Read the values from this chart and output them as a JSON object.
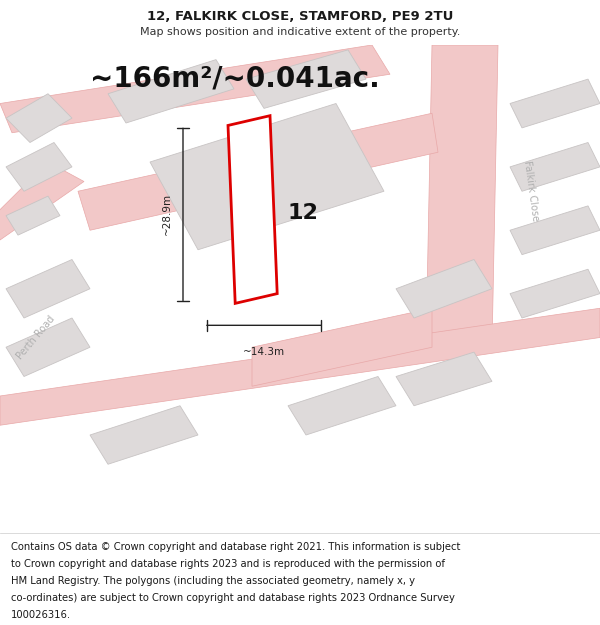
{
  "title_line1": "12, FALKIRK CLOSE, STAMFORD, PE9 2TU",
  "title_line2": "Map shows position and indicative extent of the property.",
  "area_text": "~166m²/~0.041ac.",
  "width_label": "~14.3m",
  "height_label": "~28.9m",
  "plot_number": "12",
  "footer_lines": [
    "Contains OS data © Crown copyright and database right 2021. This information is subject",
    "to Crown copyright and database rights 2023 and is reproduced with the permission of",
    "HM Land Registry. The polygons (including the associated geometry, namely x, y",
    "co-ordinates) are subject to Crown copyright and database rights 2023 Ordnance Survey",
    "100026316."
  ],
  "bg_color": "#ffffff",
  "map_bg": "#f7f2f2",
  "road_color": "#f2c8c8",
  "road_outline": "#e8a8a8",
  "building_fill": "#dedada",
  "building_outline": "#c8c4c4",
  "plot_color": "#dd0000",
  "street_label_color": "#b0b0b0",
  "dim_color": "#222222",
  "title_fontsize": 9.5,
  "subtitle_fontsize": 8,
  "area_fontsize": 20,
  "plot_num_fontsize": 16,
  "footer_fontsize": 7.2,
  "dim_fontsize": 7.5
}
